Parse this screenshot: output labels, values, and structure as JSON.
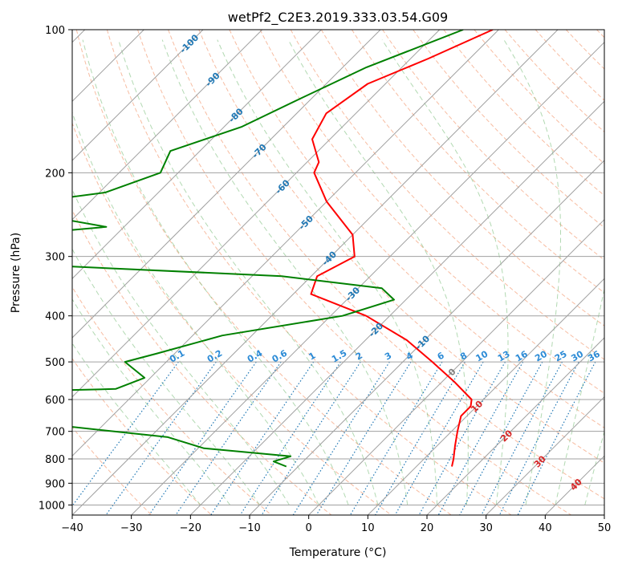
{
  "chart_data": {
    "type": "line",
    "title": "wetPf2_C2E3.2019.333.03.54.G09",
    "xlabel": "Temperature (°C)",
    "ylabel": "Pressure (hPa)",
    "xlim": [
      -40,
      50
    ],
    "ylim": [
      1050,
      100
    ],
    "yscale": "log",
    "skew": true,
    "grid": true,
    "x_ticks": [
      -40,
      -30,
      -20,
      -10,
      0,
      10,
      20,
      30,
      40,
      50
    ],
    "y_ticks": [
      100,
      200,
      300,
      400,
      500,
      600,
      700,
      800,
      900,
      1000
    ],
    "series": [
      {
        "color": "#ff0000",
        "points": [
          [
            -51,
            100
          ],
          [
            -57,
            115
          ],
          [
            -63,
            130
          ],
          [
            -65,
            150
          ],
          [
            -63,
            170
          ],
          [
            -58,
            190
          ],
          [
            -57,
            200
          ],
          [
            -50,
            230
          ],
          [
            -40,
            270
          ],
          [
            -36,
            300
          ],
          [
            -39,
            330
          ],
          [
            -37,
            360
          ],
          [
            -24,
            400
          ],
          [
            -13,
            450
          ],
          [
            -5,
            500
          ],
          [
            2,
            550
          ],
          [
            8,
            600
          ],
          [
            9,
            620
          ],
          [
            9,
            650
          ],
          [
            11,
            700
          ],
          [
            13,
            750
          ],
          [
            15,
            800
          ],
          [
            16,
            830
          ]
        ]
      },
      {
        "color": "#008000",
        "points": [
          [
            -56,
            100
          ],
          [
            -66,
            120
          ],
          [
            -72,
            140
          ],
          [
            -77,
            160
          ],
          [
            -85,
            180
          ],
          [
            -83,
            200
          ],
          [
            -89,
            220
          ],
          [
            -99,
            230
          ],
          [
            -92,
            250
          ],
          [
            -83,
            260
          ],
          [
            -103,
            275
          ],
          [
            -104,
            295
          ],
          [
            -95,
            310
          ],
          [
            -45,
            330
          ],
          [
            -26,
            350
          ],
          [
            -22,
            370
          ],
          [
            -28,
            400
          ],
          [
            -45,
            440
          ],
          [
            -53,
            480
          ],
          [
            -57,
            500
          ],
          [
            -51,
            540
          ],
          [
            -54,
            570
          ],
          [
            -100,
            590
          ],
          [
            -99,
            630
          ],
          [
            -68,
            650
          ],
          [
            -63,
            670
          ],
          [
            -37,
            720
          ],
          [
            -29,
            760
          ],
          [
            -13,
            790
          ],
          [
            -15,
            810
          ],
          [
            -12,
            830
          ]
        ]
      }
    ],
    "dry_adiabat_labels": [
      "-100",
      "-90",
      "-80",
      "-70",
      "-60",
      "-50",
      "-40",
      "-30",
      "-20",
      "-10",
      "0",
      "10",
      "20",
      "30",
      "40"
    ],
    "mixing_ratio_labels": [
      "0.1",
      "0.2",
      "0.4",
      "0.6",
      "1",
      "1.5",
      "2",
      "3",
      "4",
      "6",
      "8",
      "10",
      "13",
      "16",
      "20",
      "25",
      "30",
      "36"
    ],
    "mixing_ratio_values": [
      0.1,
      0.2,
      0.4,
      0.6,
      1,
      1.5,
      2,
      3,
      4,
      6,
      8,
      10,
      13,
      16,
      20,
      25,
      30,
      36
    ]
  }
}
